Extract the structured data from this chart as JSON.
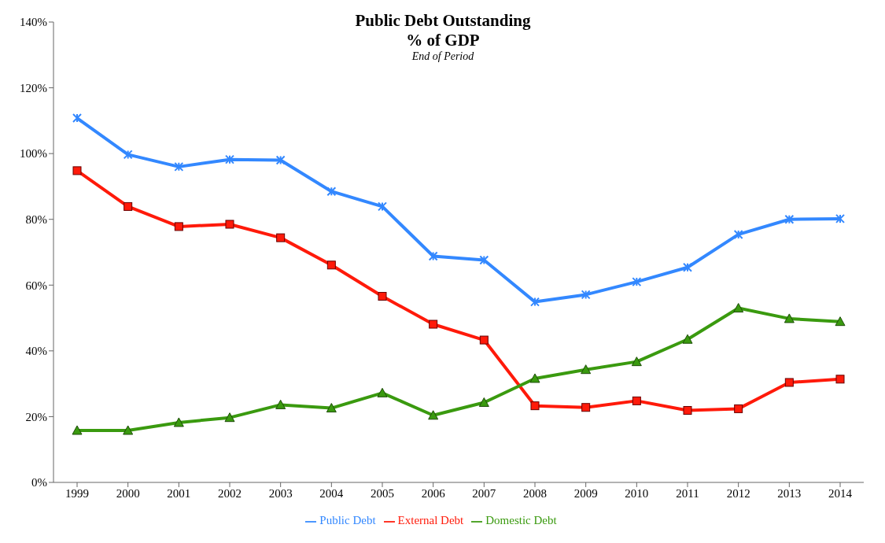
{
  "chart_data": {
    "type": "line",
    "title": "Public Debt Outstanding",
    "subtitle": "% of GDP",
    "annotations": [
      "End of Period"
    ],
    "categories": [
      "1999",
      "2000",
      "2001",
      "2002",
      "2003",
      "2004",
      "2005",
      "2006",
      "2007",
      "2008",
      "2009",
      "2010",
      "2011",
      "2012",
      "2013",
      "2014"
    ],
    "series": [
      {
        "name": "Public Debt",
        "color": "#3388ff",
        "marker": "cross",
        "values": [
          110.8,
          99.7,
          96,
          98.2,
          98,
          88.5,
          83.9,
          68.8,
          67.6,
          54.9,
          57.1,
          61,
          65.4,
          75.4,
          80,
          80.2
        ]
      },
      {
        "name": "External Debt",
        "color": "#ff1a0a",
        "marker": "square",
        "values": [
          94.8,
          83.9,
          77.8,
          78.5,
          74.4,
          66.1,
          56.6,
          48.1,
          43.3,
          23.3,
          22.8,
          24.8,
          21.9,
          22.4,
          30.4,
          31.4
        ]
      },
      {
        "name": "Domestic Debt",
        "color": "#3a9a0f",
        "marker": "triangle",
        "values": [
          15.8,
          15.8,
          18.2,
          19.7,
          23.6,
          22.6,
          27.2,
          20.4,
          24.3,
          31.6,
          34.3,
          36.7,
          43.5,
          53,
          49.8,
          48.9
        ]
      }
    ],
    "ylim": [
      0,
      140
    ],
    "yticks": [
      {
        "value": 0,
        "label": "0%"
      },
      {
        "value": 20,
        "label": "20%"
      },
      {
        "value": 40,
        "label": "40%"
      },
      {
        "value": 60,
        "label": "60%"
      },
      {
        "value": 80,
        "label": "80%"
      },
      {
        "value": 100,
        "label": "100%"
      },
      {
        "value": 120,
        "label": "120%"
      },
      {
        "value": 140,
        "label": "140%"
      }
    ],
    "legend": "bottom",
    "line_style": "solid",
    "grid": false
  }
}
